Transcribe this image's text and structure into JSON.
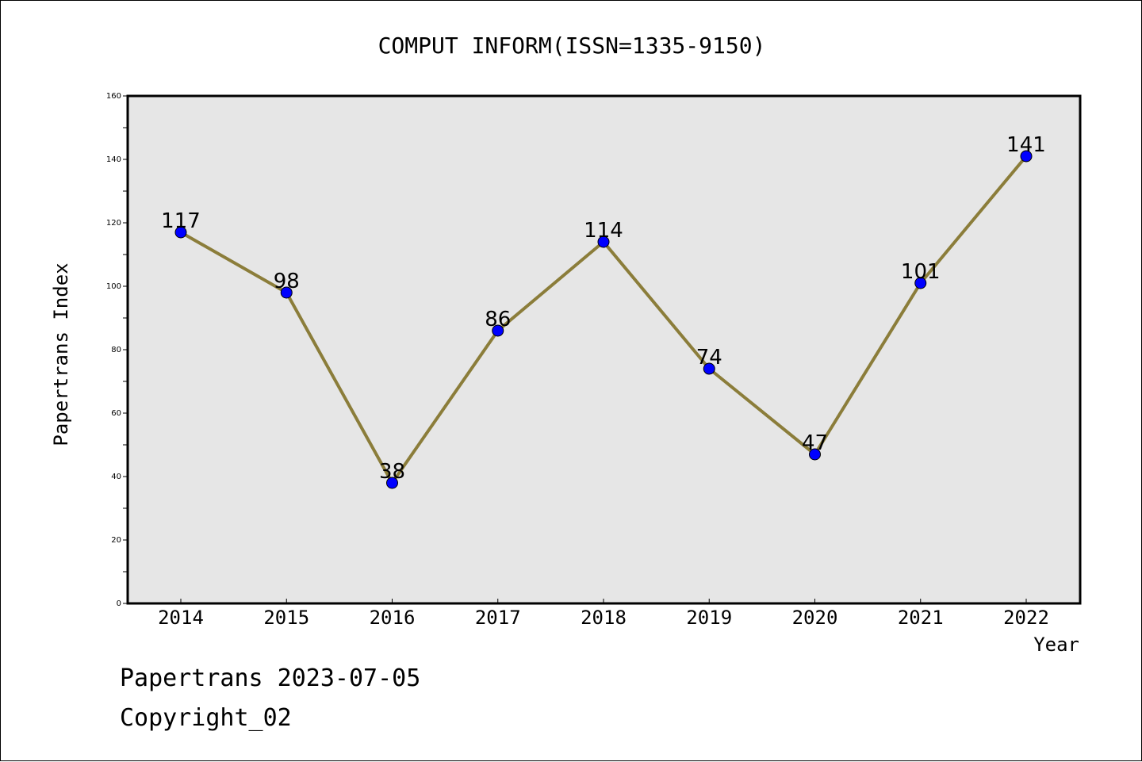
{
  "chart_data": {
    "type": "line",
    "title": "COMPUT INFORM(ISSN=1335-9150)",
    "xlabel": "Year",
    "ylabel": "Papertrans Index",
    "categories": [
      "2014",
      "2015",
      "2016",
      "2017",
      "2018",
      "2019",
      "2020",
      "2021",
      "2022"
    ],
    "series": [
      {
        "values": [
          117,
          98,
          38,
          86,
          114,
          74,
          47,
          101,
          141
        ]
      }
    ],
    "data_labels": [
      "117",
      "98",
      "38",
      "86",
      "114",
      "74",
      "47",
      "101",
      "141"
    ],
    "ylim": [
      0,
      160
    ],
    "yticks": [
      0,
      20,
      40,
      60,
      80,
      100,
      120,
      140,
      160
    ],
    "ytick_labels": [
      "0",
      "20",
      "40",
      "60",
      "80",
      "100",
      "120",
      "140",
      "160"
    ],
    "grid": false,
    "line_color": "#8b7d3a",
    "marker_color": "#0000ff",
    "plot_background": "#e6e6e6"
  },
  "footer": {
    "line1": "Papertrans 2023-07-05",
    "line2": "Copyright_02"
  }
}
